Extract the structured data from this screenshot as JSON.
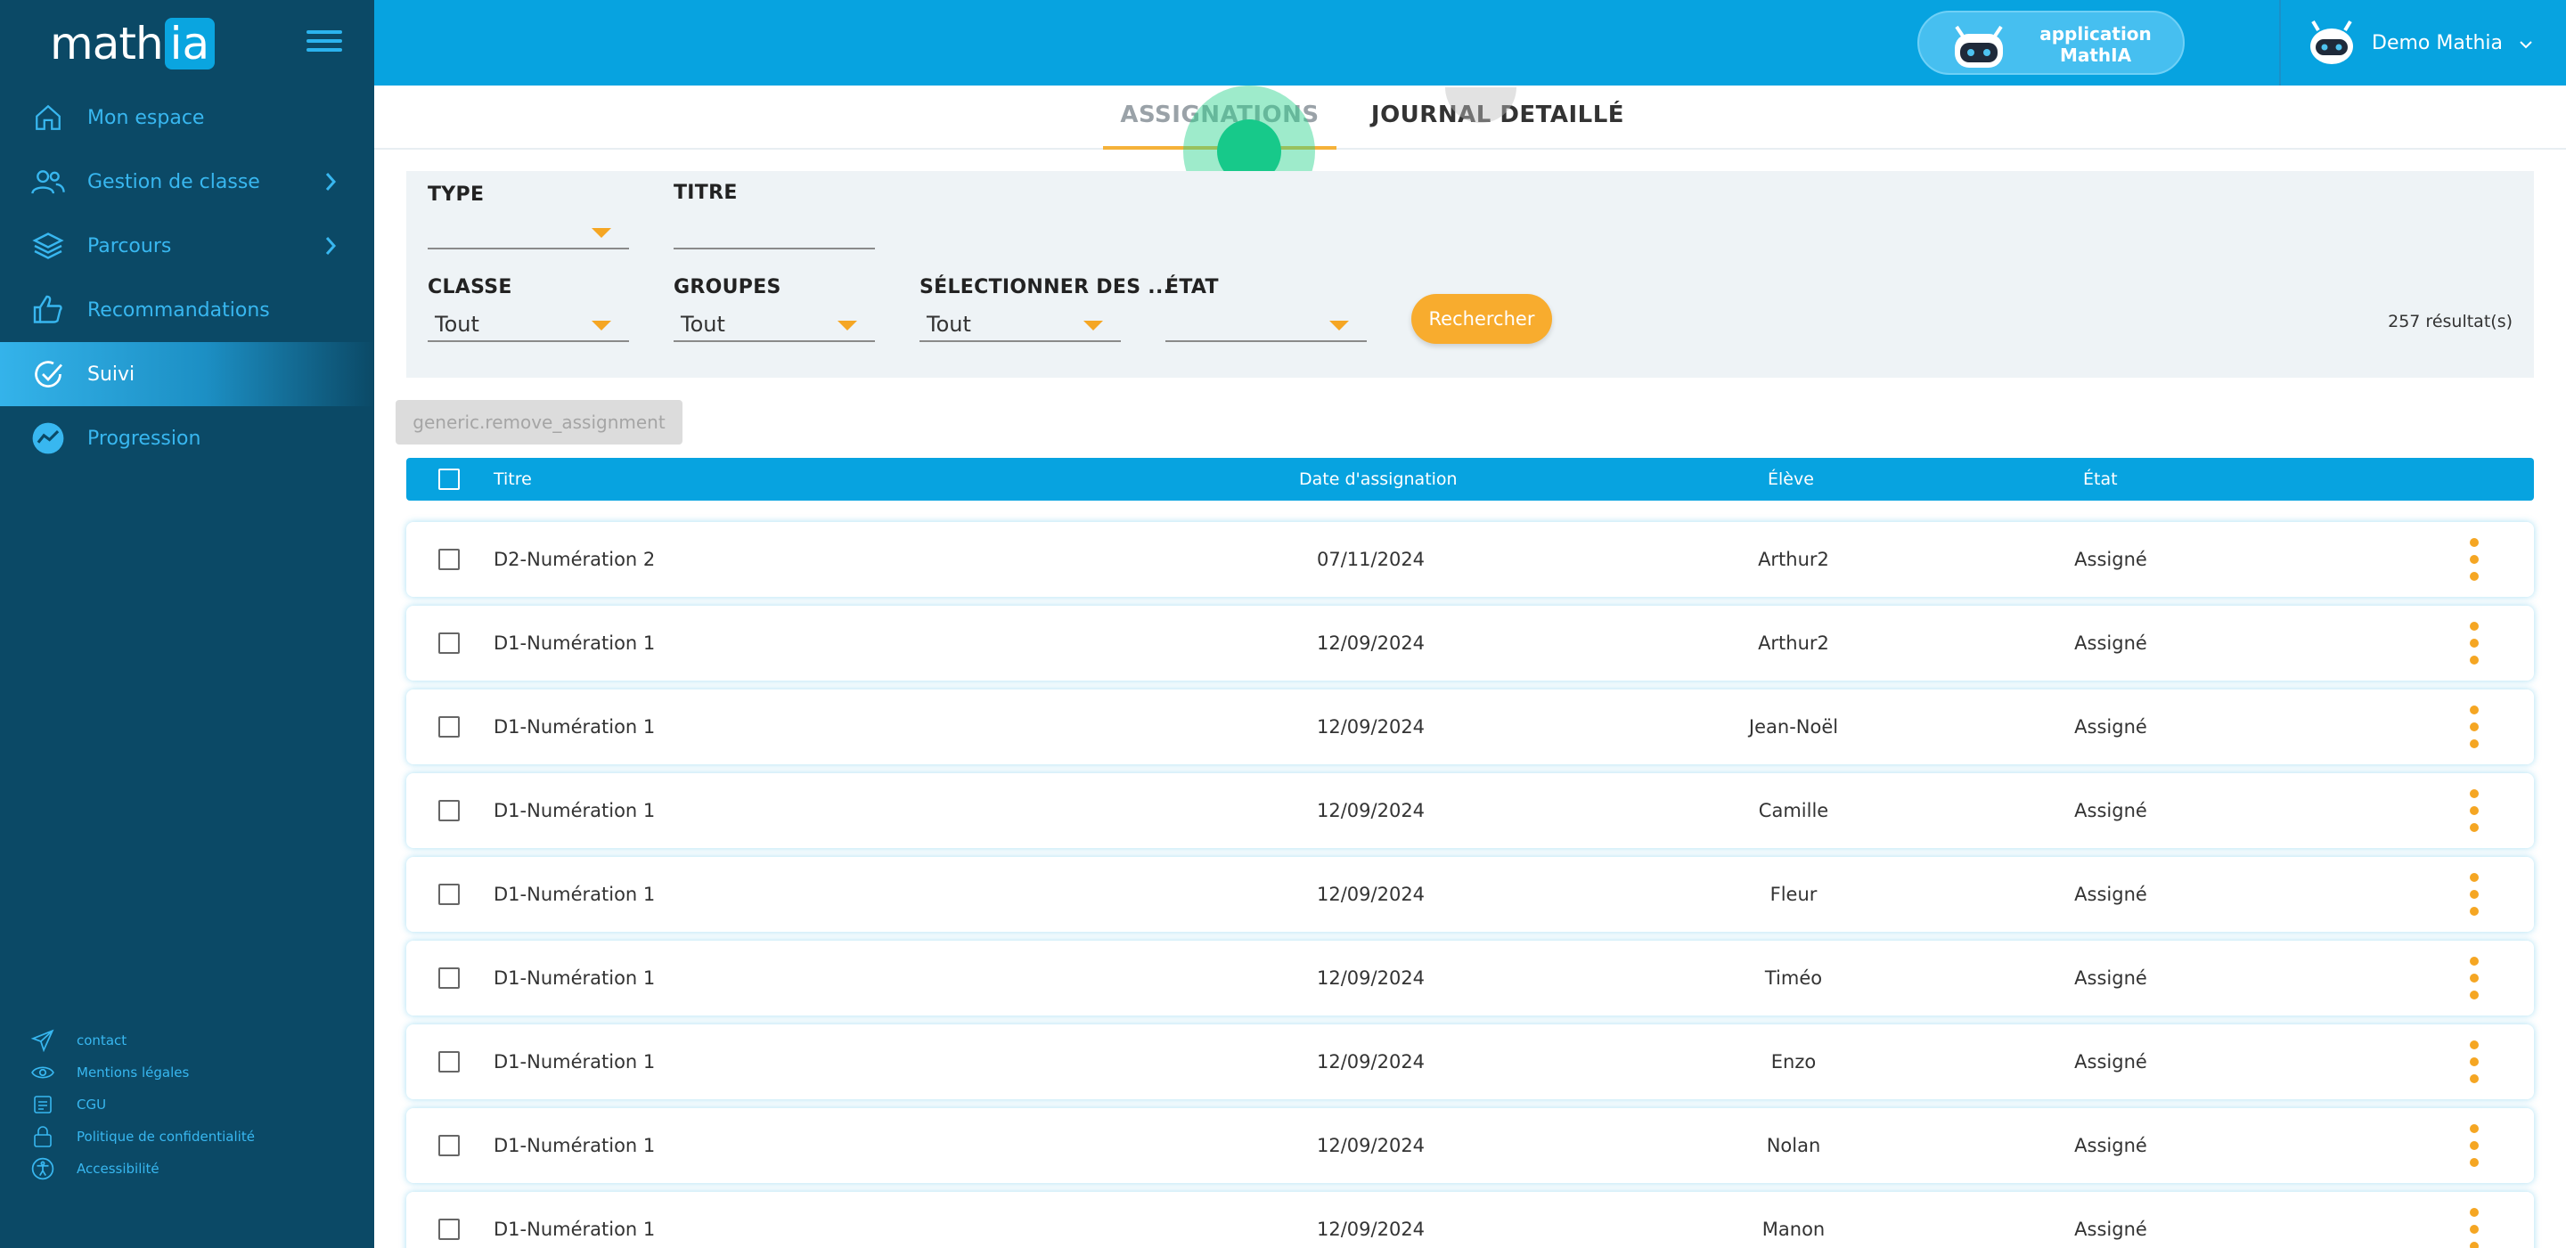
{
  "sidebar": {
    "logo": {
      "math": "math",
      "ia": "ia"
    },
    "nav": [
      {
        "label": "Mon espace",
        "icon": "home-icon"
      },
      {
        "label": "Gestion de classe",
        "icon": "users-icon",
        "has_chevron": true
      },
      {
        "label": "Parcours",
        "icon": "layers-icon",
        "has_chevron": true
      },
      {
        "label": "Recommandations",
        "icon": "thumbs-up-icon"
      },
      {
        "label": "Suivi",
        "icon": "check-circle-icon",
        "active": true
      },
      {
        "label": "Progression",
        "icon": "trend-icon"
      }
    ],
    "footer": [
      {
        "label": "contact",
        "icon": "send-icon"
      },
      {
        "label": "Mentions légales",
        "icon": "eye-icon"
      },
      {
        "label": "CGU",
        "icon": "document-icon"
      },
      {
        "label": "Politique de confidentialité",
        "icon": "lock-icon"
      },
      {
        "label": "Accessibilité",
        "icon": "accessibility-icon"
      }
    ]
  },
  "topbar": {
    "app_button": {
      "line1": "application",
      "line2": "MathIA"
    },
    "user_name": "Demo Mathia"
  },
  "tabs": {
    "assignations": "ASSIGNATIONS",
    "journal": "JOURNAL DETAILLÉ"
  },
  "filters": {
    "type": {
      "label": "TYPE",
      "value": ""
    },
    "titre": {
      "label": "TITRE",
      "value": ""
    },
    "classe": {
      "label": "CLASSE",
      "value": "Tout"
    },
    "groupes": {
      "label": "GROUPES",
      "value": "Tout"
    },
    "selectionner": {
      "label": "SÉLECTIONNER DES ...",
      "value": "Tout"
    },
    "etat": {
      "label": "ÉTAT",
      "value": ""
    },
    "search_button": "Rechercher",
    "results": "257 résultat(s)"
  },
  "remove_button": "generic.remove_assignment",
  "table": {
    "headers": {
      "titre": "Titre",
      "date": "Date d'assignation",
      "eleve": "Élève",
      "etat": "État"
    },
    "rows": [
      {
        "titre": "D2-Numération 2",
        "date": "07/11/2024",
        "eleve": "Arthur2",
        "etat": "Assigné"
      },
      {
        "titre": "D1-Numération 1",
        "date": "12/09/2024",
        "eleve": "Arthur2",
        "etat": "Assigné"
      },
      {
        "titre": "D1-Numération 1",
        "date": "12/09/2024",
        "eleve": "Jean-Noël",
        "etat": "Assigné"
      },
      {
        "titre": "D1-Numération 1",
        "date": "12/09/2024",
        "eleve": "Camille",
        "etat": "Assigné"
      },
      {
        "titre": "D1-Numération 1",
        "date": "12/09/2024",
        "eleve": "Fleur",
        "etat": "Assigné"
      },
      {
        "titre": "D1-Numération 1",
        "date": "12/09/2024",
        "eleve": "Timéo",
        "etat": "Assigné"
      },
      {
        "titre": "D1-Numération 1",
        "date": "12/09/2024",
        "eleve": "Enzo",
        "etat": "Assigné"
      },
      {
        "titre": "D1-Numération 1",
        "date": "12/09/2024",
        "eleve": "Nolan",
        "etat": "Assigné"
      },
      {
        "titre": "D1-Numération 1",
        "date": "12/09/2024",
        "eleve": "Manon",
        "etat": "Assigné"
      }
    ]
  },
  "colors": {
    "sidebar": "#0b4966",
    "topbar": "#07a3e0",
    "accent": "#f5a623"
  }
}
